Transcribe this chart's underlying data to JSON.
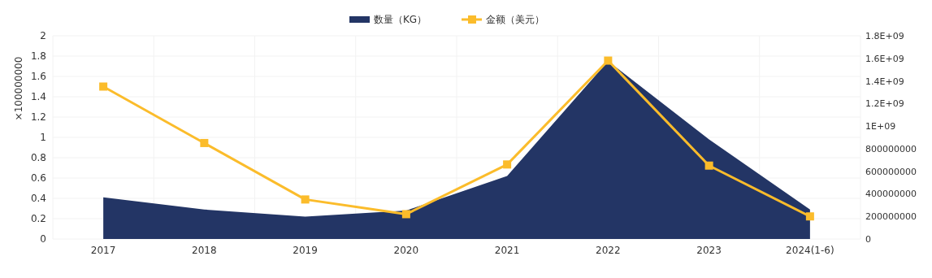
{
  "chart_data": {
    "type": "area",
    "ylabel": "×100000000",
    "categories": [
      "2017",
      "2018",
      "2019",
      "2020",
      "2021",
      "2022",
      "2023",
      "2024(1-6)"
    ],
    "series": [
      {
        "name": "数量（KG）",
        "color": "#233565",
        "values": [
          0.41,
          0.29,
          0.22,
          0.28,
          0.62,
          1.75,
          0.98,
          0.29
        ]
      },
      {
        "name": "金额（美元）",
        "type": "line",
        "axis": "y2",
        "color": "#fbbc2b",
        "marker": "square",
        "values": [
          1350000000,
          850000000,
          350000000,
          220000000,
          660000000,
          1580000000,
          650000000,
          200000000
        ]
      }
    ],
    "ylim": [
      0,
      2
    ],
    "yticks": [
      0,
      0.2,
      0.4,
      0.6,
      0.8,
      1,
      1.2,
      1.4,
      1.6,
      1.8,
      2
    ],
    "y2lim": [
      0,
      1800000000
    ],
    "y2ticks": [
      0,
      200000000,
      400000000,
      600000000,
      800000000,
      {
        "value": 1000000000,
        "label": "1E+09"
      },
      {
        "value": 1200000000,
        "label": "1.2E+09"
      },
      {
        "value": 1400000000,
        "label": "1.4E+09"
      },
      {
        "value": 1600000000,
        "label": "1.6E+09"
      },
      {
        "value": 1800000000,
        "label": "1.8E+09"
      }
    ],
    "grid": true,
    "legend": "top"
  }
}
